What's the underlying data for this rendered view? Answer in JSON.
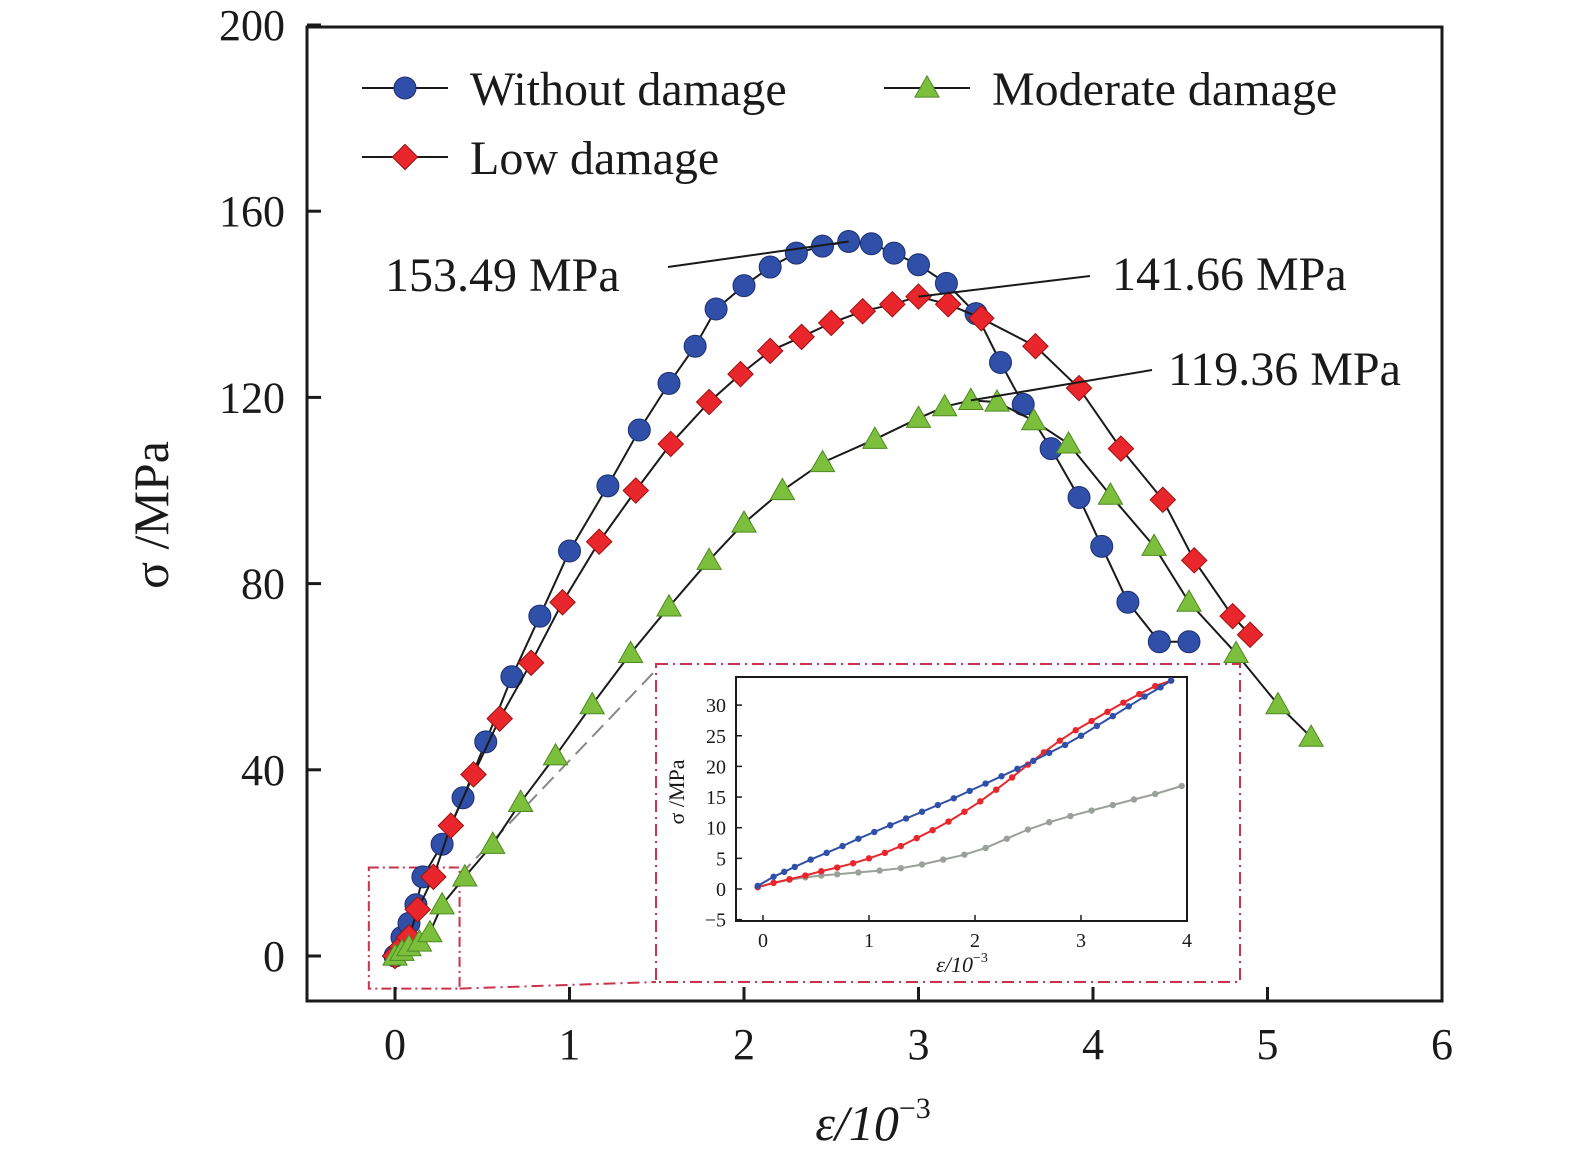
{
  "chart_data": [
    {
      "type": "line",
      "xlabel": "ε/10",
      "xlabel_sup": "−3",
      "ylabel": "σ /MPa",
      "xlim": [
        -0.5,
        6
      ],
      "ylim": [
        -10,
        200
      ],
      "xticks": [
        "0",
        "1",
        "2",
        "3",
        "4",
        "5",
        "6"
      ],
      "yticks": [
        "0",
        "40",
        "80",
        "120",
        "160",
        "200"
      ],
      "grid": false,
      "legend_position": "top",
      "series": [
        {
          "name": "Without damage",
          "color": "#2f4fa8",
          "marker": "circle",
          "x": [
            0.0,
            0.04,
            0.08,
            0.12,
            0.16,
            0.27,
            0.39,
            0.52,
            0.67,
            0.83,
            1.0,
            1.22,
            1.4,
            1.57,
            1.72,
            1.84,
            2.0,
            2.15,
            2.3,
            2.45,
            2.6,
            2.73,
            2.86,
            3.0,
            3.16,
            3.33,
            3.47,
            3.6,
            3.76,
            3.92,
            4.05,
            4.2,
            4.38,
            4.55
          ],
          "y": [
            0,
            4,
            7,
            11,
            17,
            24,
            34,
            46,
            60,
            73,
            87,
            101,
            113,
            123,
            131,
            139,
            144,
            148,
            151,
            152.5,
            153.49,
            153,
            151,
            148.5,
            144.5,
            138,
            127.5,
            118.5,
            109,
            98.5,
            88,
            76,
            67.5,
            67.5
          ]
        },
        {
          "name": "Low damage",
          "color": "#e8262b",
          "marker": "diamond",
          "x": [
            0.0,
            0.04,
            0.08,
            0.13,
            0.22,
            0.32,
            0.45,
            0.6,
            0.78,
            0.96,
            1.17,
            1.38,
            1.58,
            1.8,
            1.98,
            2.15,
            2.33,
            2.5,
            2.68,
            2.85,
            3.0,
            3.17,
            3.36,
            3.67,
            3.92,
            4.16,
            4.4,
            4.58,
            4.8,
            4.9
          ],
          "y": [
            0,
            2,
            4,
            10,
            17,
            28,
            39,
            51,
            63,
            76,
            89,
            100,
            110,
            119,
            125,
            130,
            133,
            136,
            138.5,
            140,
            141.66,
            140,
            137,
            131,
            122,
            109,
            98,
            85,
            73,
            69
          ]
        },
        {
          "name": "Moderate damage",
          "color": "#7bbf3c",
          "marker": "triangle",
          "x": [
            0.0,
            0.04,
            0.08,
            0.14,
            0.2,
            0.27,
            0.4,
            0.56,
            0.72,
            0.92,
            1.13,
            1.35,
            1.57,
            1.8,
            2.0,
            2.22,
            2.45,
            2.75,
            3.0,
            3.15,
            3.3,
            3.45,
            3.66,
            3.86,
            4.1,
            4.35,
            4.55,
            4.82,
            5.06,
            5.25
          ],
          "y": [
            0,
            1,
            2,
            3,
            5,
            11,
            17,
            24,
            33,
            43,
            54,
            65,
            75,
            85,
            93,
            100,
            106,
            111,
            115.5,
            118,
            119.36,
            119,
            115,
            110,
            99,
            88,
            76,
            65,
            54,
            47
          ]
        }
      ],
      "annotations": [
        {
          "text": "153.49 MPa",
          "x": 2.6,
          "y": 153.49
        },
        {
          "text": "141.66 MPa",
          "x": 3.0,
          "y": 141.66
        },
        {
          "text": "119.36 MPa",
          "x": 3.3,
          "y": 119.36
        }
      ],
      "zoom_region": {
        "xlim": [
          -0.15,
          0.37
        ],
        "ylim": [
          -7,
          19
        ]
      }
    },
    {
      "type": "line",
      "inset": true,
      "xlabel": "ε/10",
      "xlabel_sup": "−3",
      "ylabel": "σ /MPa",
      "xlim": [
        -0.25,
        4
      ],
      "ylim": [
        -5,
        34
      ],
      "xticks": [
        "0",
        "1",
        "2",
        "3",
        "4"
      ],
      "yticks": [
        "−5",
        "0",
        "5",
        "10",
        "15",
        "20",
        "25",
        "30"
      ],
      "series": [
        {
          "name": "Without damage",
          "color": "#2f4fa8",
          "x": [
            -0.05,
            0.1,
            0.2,
            0.3,
            0.45,
            0.6,
            0.75,
            0.9,
            1.05,
            1.2,
            1.35,
            1.5,
            1.65,
            1.8,
            1.95,
            2.1,
            2.25,
            2.4,
            2.55,
            2.7,
            2.85,
            3.0,
            3.15,
            3.3,
            3.45,
            3.6,
            3.75,
            3.85
          ],
          "y": [
            0.5,
            2,
            2.8,
            3.6,
            4.8,
            5.9,
            7.0,
            8.2,
            9.3,
            10.4,
            11.5,
            12.6,
            13.7,
            14.8,
            16.0,
            17.2,
            18.4,
            19.6,
            20.9,
            22.2,
            23.5,
            25.0,
            26.6,
            28.2,
            29.8,
            31.4,
            32.9,
            34
          ]
        },
        {
          "name": "Low damage",
          "color": "#e8262b",
          "x": [
            -0.05,
            0.1,
            0.25,
            0.4,
            0.55,
            0.7,
            0.85,
            1.0,
            1.15,
            1.3,
            1.45,
            1.6,
            1.75,
            1.9,
            2.05,
            2.2,
            2.35,
            2.5,
            2.65,
            2.8,
            2.95,
            3.1,
            3.25,
            3.4,
            3.55,
            3.7,
            3.85
          ],
          "y": [
            0.3,
            1.0,
            1.6,
            2.2,
            2.9,
            3.5,
            4.2,
            5.0,
            5.9,
            7.0,
            8.3,
            9.6,
            11.0,
            12.6,
            14.3,
            16.2,
            18.2,
            20.3,
            22.3,
            24.2,
            25.9,
            27.4,
            28.9,
            30.4,
            31.8,
            33.1,
            34
          ]
        },
        {
          "name": "Moderate damage",
          "color": "#9aa09a",
          "x": [
            -0.05,
            0.1,
            0.25,
            0.4,
            0.55,
            0.7,
            0.9,
            1.1,
            1.3,
            1.5,
            1.7,
            1.9,
            2.1,
            2.3,
            2.5,
            2.7,
            2.9,
            3.1,
            3.3,
            3.5,
            3.7,
            3.95
          ],
          "y": [
            0.3,
            1.0,
            1.5,
            1.9,
            2.2,
            2.4,
            2.7,
            3.0,
            3.4,
            4.0,
            4.8,
            5.6,
            6.7,
            8.2,
            9.7,
            10.9,
            11.9,
            12.8,
            13.7,
            14.6,
            15.5,
            16.8
          ]
        }
      ]
    }
  ]
}
